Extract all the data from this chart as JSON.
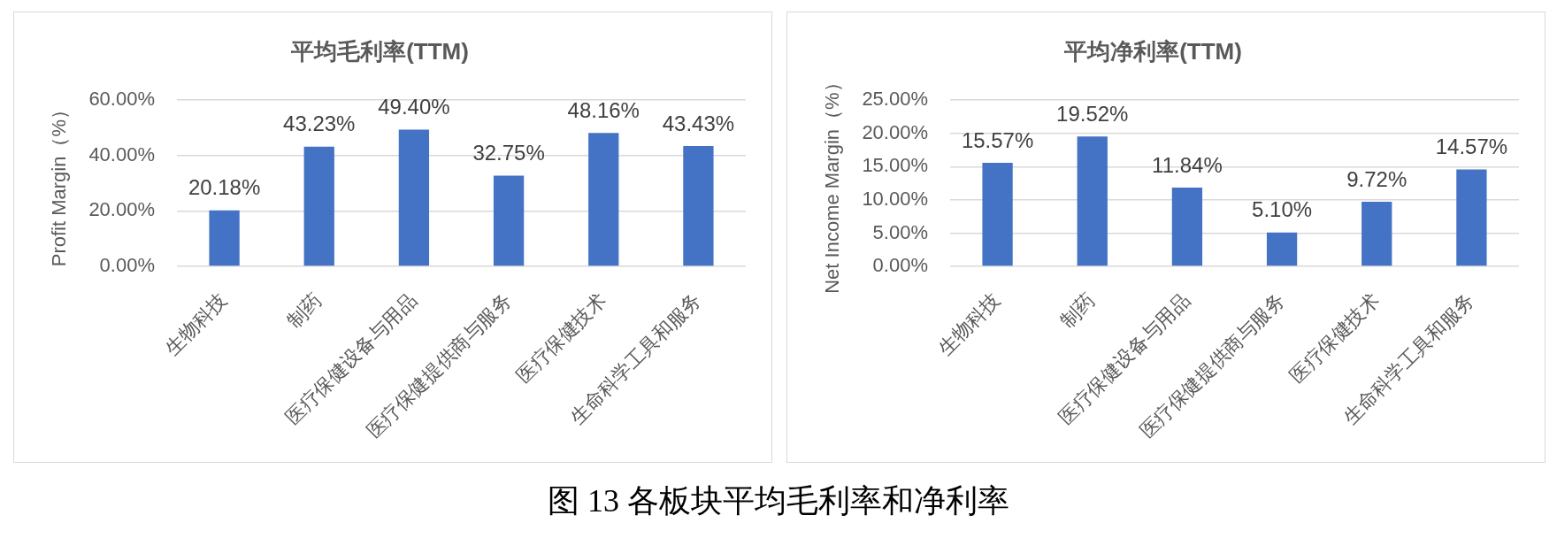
{
  "chart_data": [
    {
      "type": "bar",
      "title": "平均毛利率(TTM)",
      "ylabel": "Profit Margin（%）",
      "categories": [
        "生物科技",
        "制药",
        "医疗保健设备与用品",
        "医疗保健提供商与服务",
        "医疗保健技术",
        "生命科学工具和服务"
      ],
      "values": [
        20.18,
        43.23,
        49.4,
        32.75,
        48.16,
        43.43
      ],
      "value_labels": [
        "20.18%",
        "43.23%",
        "49.40%",
        "32.75%",
        "48.16%",
        "43.43%"
      ],
      "color": "#4472c4",
      "ylim": [
        0,
        60
      ],
      "yticks": [
        {
          "value": 0,
          "label": "0.00%"
        },
        {
          "value": 20,
          "label": "20.00%"
        },
        {
          "value": 40,
          "label": "40.00%"
        },
        {
          "value": 60,
          "label": "60.00%"
        }
      ],
      "grid": "y"
    },
    {
      "type": "bar",
      "title": "平均净利率(TTM)",
      "ylabel": "Net Income Margin（%）",
      "categories": [
        "生物科技",
        "制药",
        "医疗保健设备与用品",
        "医疗保健提供商与服务",
        "医疗保健技术",
        "生命科学工具和服务"
      ],
      "values": [
        15.57,
        19.52,
        11.84,
        5.1,
        9.72,
        14.57
      ],
      "value_labels": [
        "15.57%",
        "19.52%",
        "11.84%",
        "5.10%",
        "9.72%",
        "14.57%"
      ],
      "color": "#4472c4",
      "ylim": [
        0,
        25
      ],
      "yticks": [
        {
          "value": 0,
          "label": "0.00%"
        },
        {
          "value": 5,
          "label": "5.00%"
        },
        {
          "value": 10,
          "label": "10.00%"
        },
        {
          "value": 15,
          "label": "15.00%"
        },
        {
          "value": 20,
          "label": "20.00%"
        },
        {
          "value": 25,
          "label": "25.00%"
        }
      ],
      "grid": "y"
    },
    {
      "type": "other",
      "title": "图 13 各板块平均毛利率和净利率"
    }
  ]
}
